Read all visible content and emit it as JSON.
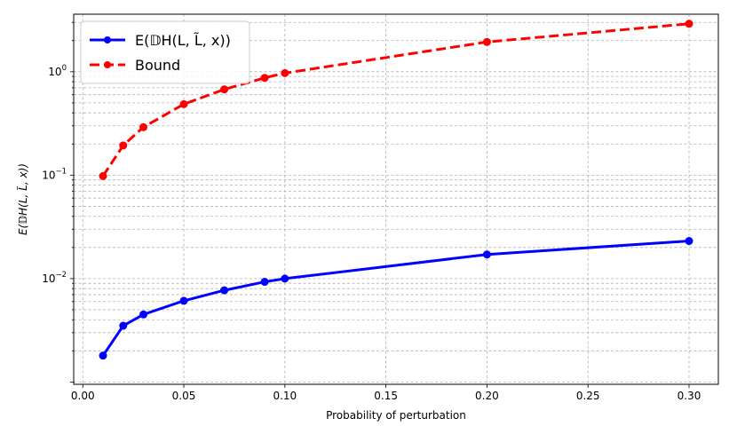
{
  "chart_data": {
    "type": "line",
    "title": "",
    "xlabel": "Probability of perturbation",
    "ylabel": "E(𝔻H(L, L̃, x))",
    "yscale": "log",
    "xlim": [
      -0.0045,
      0.3145
    ],
    "ylim": [
      0.00095,
      3.6
    ],
    "grid": true,
    "grid_minor": true,
    "legend_position": "top-left",
    "x_ticks": [
      0.0,
      0.05,
      0.1,
      0.15,
      0.2,
      0.25,
      0.3
    ],
    "x_tick_labels": [
      "0.00",
      "0.05",
      "0.10",
      "0.15",
      "0.20",
      "0.25",
      "0.30"
    ],
    "y_ticks": [
      0.01,
      0.1,
      1
    ],
    "y_tick_labels": [
      {
        "base": "10",
        "exp": "−2"
      },
      {
        "base": "10",
        "exp": "−1"
      },
      {
        "base": "10",
        "exp": "0"
      }
    ],
    "series": [
      {
        "name": "E(𝔻H(L, L̃, x))",
        "color": "#0000ff",
        "line_style": "solid",
        "x": [
          0.01,
          0.02,
          0.03,
          0.05,
          0.07,
          0.09,
          0.1,
          0.2,
          0.3
        ],
        "y": [
          0.0018,
          0.0035,
          0.0045,
          0.0061,
          0.0077,
          0.0093,
          0.01,
          0.0171,
          0.0231
        ]
      },
      {
        "name": "Bound",
        "color": "#ff0000",
        "line_style": "dashed",
        "x": [
          0.01,
          0.02,
          0.03,
          0.05,
          0.07,
          0.09,
          0.1,
          0.2,
          0.3
        ],
        "y": [
          0.098,
          0.194,
          0.291,
          0.486,
          0.675,
          0.873,
          0.97,
          1.94,
          2.91
        ]
      }
    ]
  }
}
